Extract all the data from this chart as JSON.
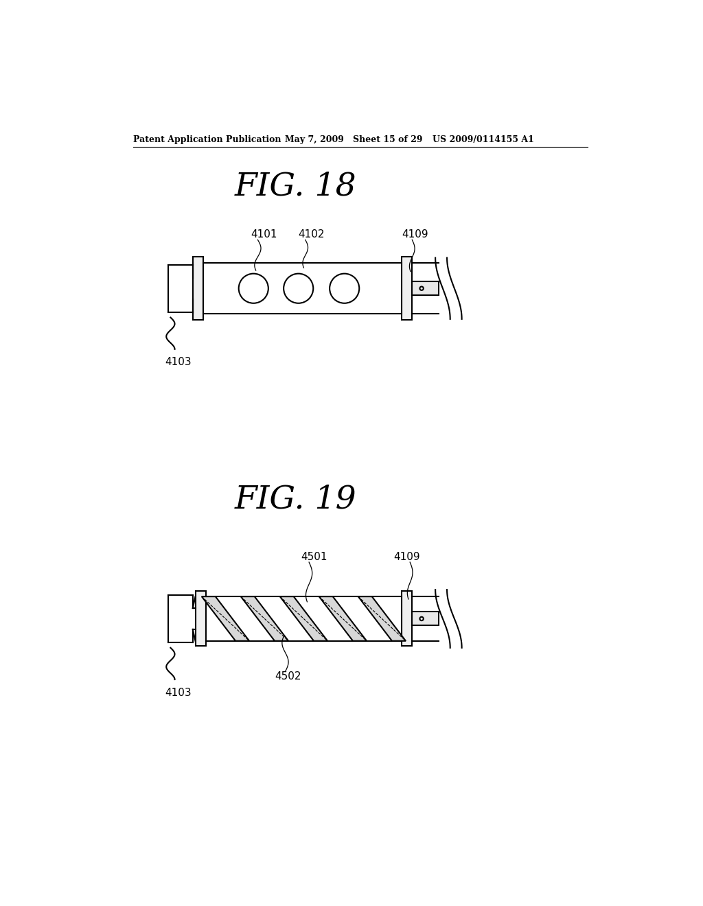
{
  "bg_color": "#ffffff",
  "header_text": "Patent Application Publication",
  "header_date": "May 7, 2009   Sheet 15 of 29",
  "header_patent": "US 2009/0114155 A1",
  "fig18_title": "FIG. 18",
  "fig19_title": "FIG. 19",
  "label_4101": "4101",
  "label_4102": "4102",
  "label_4109_1": "4109",
  "label_4103_1": "4103",
  "label_4501": "4501",
  "label_4109_2": "4109",
  "label_4502": "4502",
  "label_4103_2": "4103",
  "line_color": "#000000",
  "line_width": 1.5
}
